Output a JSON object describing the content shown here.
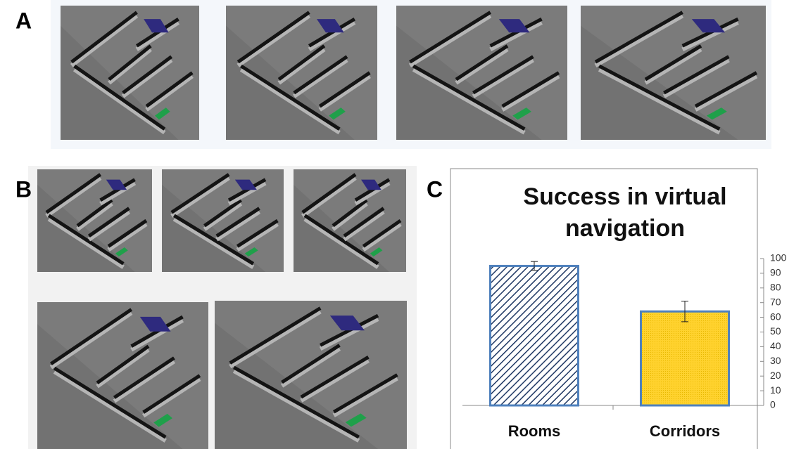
{
  "panels": [
    "A",
    "B",
    "C"
  ],
  "chart_data": {
    "type": "bar",
    "title": "Success in virtual navigation",
    "categories": [
      "Rooms",
      "Corridors"
    ],
    "values": [
      95,
      64
    ],
    "errors": [
      3,
      7
    ],
    "colors": [
      "#1f3864",
      "#ffd22e"
    ],
    "hatch": [
      true,
      false
    ],
    "edge_color": "#4f81bd",
    "ylim": [
      0,
      100
    ],
    "yticks": [
      0,
      10,
      20,
      30,
      40,
      50,
      60,
      70,
      80,
      90,
      100
    ],
    "y_axis_side": "right"
  }
}
